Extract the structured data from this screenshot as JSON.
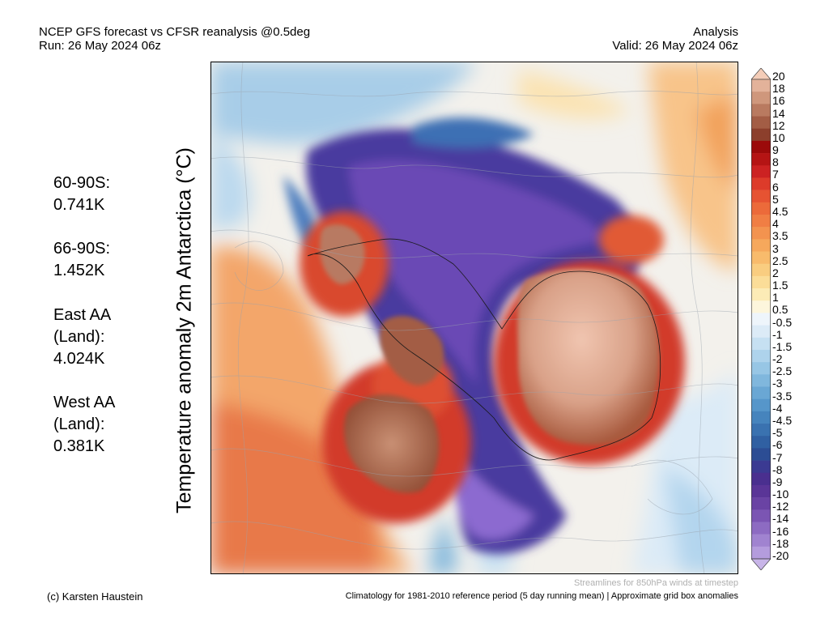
{
  "header": {
    "title_line1": "NCEP GFS forecast vs CFSR reanalysis @0.5deg",
    "title_line2": "Run: 26 May 2024 06z",
    "right_line1": "Analysis",
    "right_line2": "Valid: 26 May 2024 06z"
  },
  "stats": [
    {
      "line1": "60-90S:",
      "line2": "0.741K"
    },
    {
      "line1": "66-90S:",
      "line2": "1.452K"
    },
    {
      "line1": "East AA",
      "line2": "(Land):",
      "line3": "4.024K"
    },
    {
      "line1": "West AA",
      "line2": "(Land):",
      "line3": "0.381K"
    }
  ],
  "map": {
    "ylabel": "Temperature anomaly 2m Antarctica (°C)"
  },
  "colorbar": {
    "labels": [
      "20",
      "18",
      "16",
      "14",
      "12",
      "10",
      "9",
      "8",
      "7",
      "6",
      "5",
      "4.5",
      "4",
      "3.5",
      "3",
      "2.5",
      "2",
      "1.5",
      "1",
      "0.5",
      "-0.5",
      "-1",
      "-1.5",
      "-2",
      "-2.5",
      "-3",
      "-3.5",
      "-4",
      "-4.5",
      "-5",
      "-6",
      "-7",
      "-8",
      "-9",
      "-10",
      "-12",
      "-14",
      "-16",
      "-18",
      "-20"
    ],
    "colors": [
      "#f4cdb8",
      "#e3b29a",
      "#cf977c",
      "#b97a60",
      "#a35d45",
      "#8c3f2c",
      "#9b0a0a",
      "#b51414",
      "#cc2222",
      "#dd3b2a",
      "#e65332",
      "#ec6a3a",
      "#f07e44",
      "#f3934f",
      "#f6a85c",
      "#f8bb6c",
      "#f9cd80",
      "#fbdd98",
      "#fcebb6",
      "#fdf6dc",
      "#eef5fb",
      "#dcebf7",
      "#c6e0f2",
      "#aed3ec",
      "#97c6e5",
      "#80b7dd",
      "#6aa7d4",
      "#5696ca",
      "#4684bd",
      "#3a72b0",
      "#3060a2",
      "#2c4d94",
      "#3b3a92",
      "#4a2f8f",
      "#5a3597",
      "#6a43a4",
      "#7b55b3",
      "#8d6bc2",
      "#a083d0",
      "#b49cdd",
      "#c8b5e8"
    ]
  },
  "footer": {
    "credit": "(c) Karsten Haustein",
    "streamlines_note": "Streamlines for 850hPa winds at timestep",
    "climatology_note": "Climatology for 1981-2010 reference period (5 day running mean) | Approximate grid box anomalies"
  }
}
